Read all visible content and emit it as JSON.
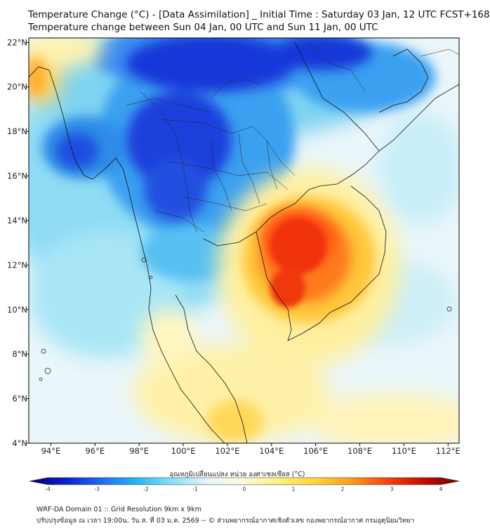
{
  "title": {
    "line1": "Temperature Change (°C) - [Data Assimilation] _ Initial Time : Saturday 03 Jan, 12 UTC FCST+168",
    "line2": "Temperature change between Sun 04 Jan, 00 UTC and Sun 11 Jan, 00 UTC"
  },
  "axes": {
    "lon_labels": [
      "94°E",
      "96°E",
      "98°E",
      "100°E",
      "102°E",
      "104°E",
      "106°E",
      "108°E",
      "110°E",
      "112°E"
    ],
    "lat_labels": [
      "22°N",
      "20°N",
      "18°N",
      "16°N",
      "14°N",
      "12°N",
      "10°N",
      "8°N",
      "6°N",
      "4°N"
    ],
    "lon_range": [
      93.0,
      112.5
    ],
    "lat_range": [
      4.0,
      22.2
    ]
  },
  "colorbar": {
    "label": "อุณหภูมิเปลี่ยนแปลง หน่วย องศาเซลเซียส (°C)",
    "ticks": [
      "-4",
      "-3",
      "-2",
      "-1",
      "0",
      "1",
      "2",
      "3",
      "4"
    ],
    "range": [
      -4,
      4
    ],
    "colors": [
      "#000066",
      "#0a1fd0",
      "#1e6cf0",
      "#27b6f5",
      "#8ae2f8",
      "#e8f6fb",
      "#fdfbd8",
      "#fff07a",
      "#ffd43a",
      "#ff9a1f",
      "#f5410f",
      "#c80a00",
      "#6a0000"
    ]
  },
  "footer": {
    "line1": "WRF-DA Domain 01 :: Grid Resolution 9km x 9km",
    "line2": "ปรับปรุงข้อมูล ณ เวลา 19:00น. วัน ส. ที่ 03 ม.ค. 2569 -- © ส่วนพยากรณ์อากาศเชิงตัวเลข กองพยากรณ์อากาศ กรมอุตุนิยมวิทยา"
  },
  "colors": {
    "cold_strong": "#0a1fd0",
    "cold": "#27b6f5",
    "neutral": "#e8f6fb",
    "warm": "#ffd43a",
    "hot": "#f5410f"
  }
}
